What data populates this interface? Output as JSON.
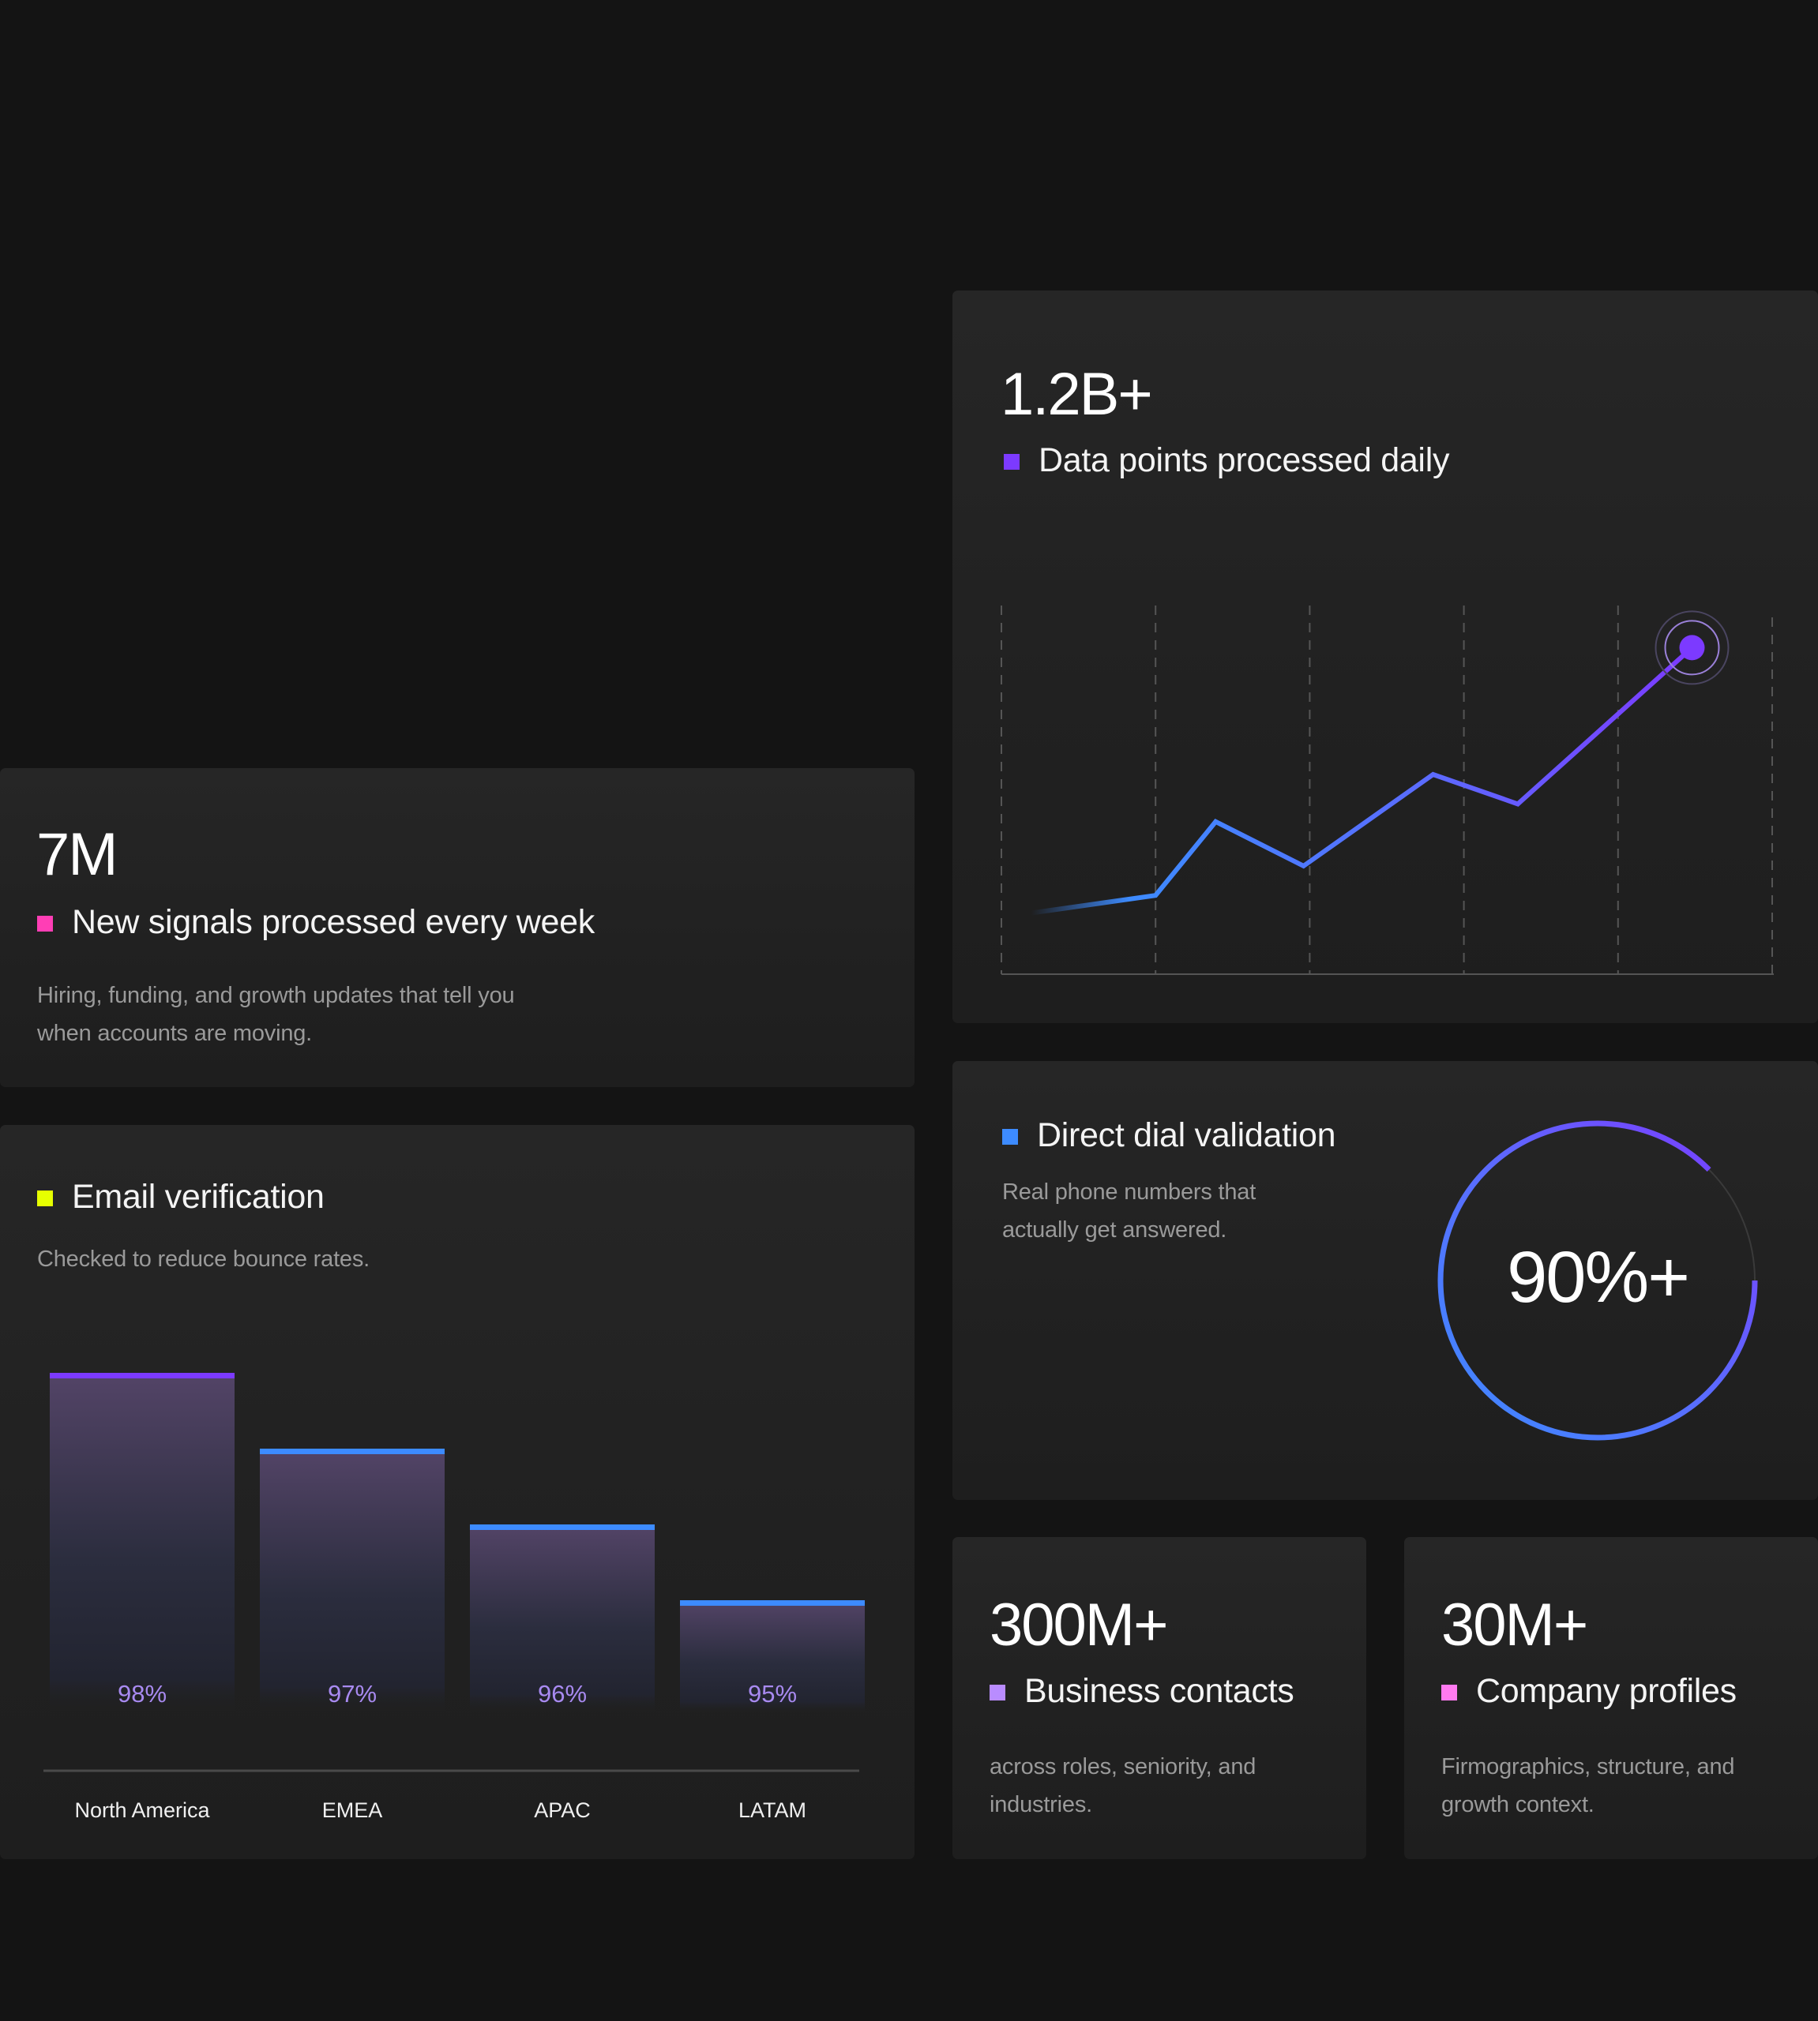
{
  "cards": {
    "data_points": {
      "value": "1.2B+",
      "label": "Data points processed daily",
      "marker_color": "#7C3AFF"
    },
    "signals": {
      "value": "7M",
      "label": "New signals processed every week",
      "description_lines": [
        "Hiring, funding, and growth updates that tell you",
        "when accounts are moving."
      ],
      "marker_color": "#FF3EB5"
    },
    "email": {
      "label": "Email verification",
      "description": "Checked to reduce bounce rates.",
      "marker_color": "#E6FF00"
    },
    "direct_dial": {
      "label": "Direct dial validation",
      "description_lines": [
        "Real phone numbers that",
        "actually get answered."
      ],
      "value": "90%+",
      "marker_color": "#3D8BFF",
      "progress": 0.9
    },
    "contacts": {
      "value": "300M+",
      "label": "Business contacts",
      "description_lines": [
        "across roles, seniority, and",
        "industries."
      ],
      "marker_color": "#B98CFF"
    },
    "companies": {
      "value": "30M+",
      "label": "Company profiles",
      "description_lines": [
        "Firmographics, structure, and",
        "growth context."
      ],
      "marker_color": "#FF7AF0"
    }
  },
  "colors": {
    "accent_blue": "#3D8BFF",
    "accent_purple": "#7C3AFF",
    "bar_label": "#A88AF0"
  },
  "chart_data": [
    {
      "type": "line",
      "title": "Data points processed daily",
      "x": [
        0,
        1,
        2,
        3,
        4,
        5,
        6
      ],
      "values": [
        1.0,
        1.6,
        4.1,
        2.6,
        5.7,
        4.7,
        10.0
      ],
      "xlabel": "",
      "ylabel": "",
      "ylim": [
        0,
        11
      ],
      "grid": "vertical-dashed",
      "gridlines": 6
    },
    {
      "type": "bar",
      "title": "Email verification",
      "categories": [
        "North America",
        "EMEA",
        "APAC",
        "LATAM"
      ],
      "values": [
        98,
        97,
        96,
        95
      ],
      "value_labels": [
        "98%",
        "97%",
        "96%",
        "95%"
      ],
      "xlabel": "",
      "ylabel": "",
      "ylim": [
        90,
        100
      ]
    }
  ]
}
